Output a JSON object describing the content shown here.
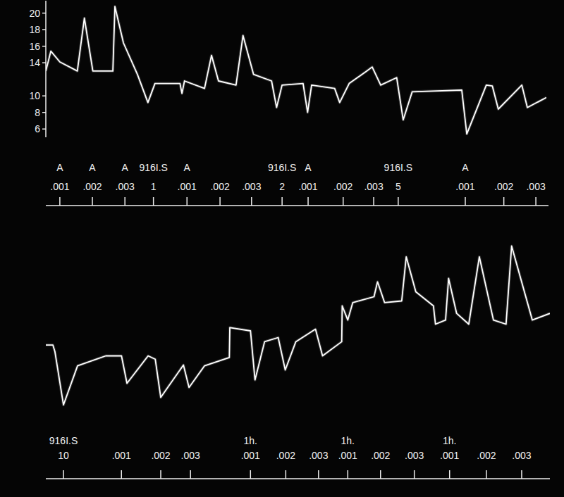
{
  "chart_data": [
    {
      "type": "line",
      "color": "#ffffff",
      "tick_labels": "y",
      "xlim": [
        0,
        100
      ],
      "ylim": [
        5,
        21.5
      ],
      "yticks": [
        6,
        8,
        10,
        14,
        16,
        18,
        20
      ],
      "x": [
        0,
        1.0,
        2.8,
        6.3,
        7.7,
        8.5,
        9.4,
        13.4,
        13.8,
        15.5,
        18.3,
        20.4,
        21.8,
        26.8,
        27.2,
        27.7,
        31.7,
        33.1,
        34.5,
        38.0,
        39.4,
        41.5,
        45.1,
        46.1,
        47.2,
        51.4,
        52.3,
        53.1,
        57.7,
        58.7,
        60.6,
        64.1,
        65.2,
        66.9,
        70.1,
        71.4,
        73.2,
        83.1,
        84.1,
        88.0,
        89.2,
        90.4,
        95.1,
        96.2,
        100
      ],
      "values": [
        13.0,
        15.4,
        14.1,
        13.0,
        19.4,
        16.4,
        13.0,
        13.0,
        20.8,
        16.4,
        12.6,
        9.2,
        11.5,
        11.5,
        10.3,
        11.8,
        10.9,
        14.9,
        11.8,
        11.3,
        17.3,
        12.6,
        11.8,
        8.6,
        11.3,
        11.5,
        8.0,
        11.3,
        10.9,
        9.2,
        11.5,
        13.0,
        13.5,
        11.3,
        12.2,
        7.1,
        10.5,
        10.7,
        5.4,
        11.3,
        11.2,
        8.4,
        11.3,
        8.6,
        9.8
      ],
      "events": [
        {
          "x": 2.8,
          "label": "A",
          "dose": ".001"
        },
        {
          "x": 9.3,
          "label": "A",
          "dose": ".002"
        },
        {
          "x": 15.8,
          "label": "A",
          "dose": ".003"
        },
        {
          "x": 21.5,
          "label": "916I.S",
          "dose": "1"
        },
        {
          "x": 28.2,
          "label": "A",
          "dose": ".001"
        },
        {
          "x": 34.8,
          "dose": ".002"
        },
        {
          "x": 41.1,
          "dose": ".003"
        },
        {
          "x": 47.2,
          "label": "916I.S",
          "dose": "2"
        },
        {
          "x": 52.4,
          "label": "A",
          "dose": ".001"
        },
        {
          "x": 59.4,
          "dose": ".002"
        },
        {
          "x": 65.5,
          "dose": ".003"
        },
        {
          "x": 70.4,
          "label": "916I.S",
          "dose": "5"
        },
        {
          "x": 83.8,
          "label": "A",
          "dose": ".001"
        },
        {
          "x": 91.5,
          "dose": ".002"
        },
        {
          "x": 97.9,
          "dose": ".003"
        }
      ]
    },
    {
      "type": "line",
      "color": "#ffffff",
      "tick_labels": false,
      "xlim": [
        0,
        100
      ],
      "ylim": [
        0,
        22
      ],
      "x": [
        0,
        1.4,
        1.8,
        3.5,
        6.3,
        11.9,
        15.0,
        16.1,
        20.3,
        21.7,
        22.8,
        27.3,
        28.4,
        31.5,
        36.4,
        36.5,
        40.6,
        41.5,
        43.4,
        46.1,
        47.5,
        49.6,
        53.5,
        54.9,
        58.7,
        58.8,
        59.9,
        60.9,
        65.1,
        65.8,
        67.2,
        70.6,
        71.5,
        73.4,
        76.9,
        77.3,
        79.3,
        79.9,
        81.5,
        83.9,
        86.0,
        88.8,
        91.3,
        92.4,
        96.5,
        100
      ],
      "values": [
        9.3,
        9.3,
        8.5,
        2.1,
        6.8,
        8.0,
        8.0,
        4.7,
        8.0,
        7.6,
        3.0,
        6.9,
        4.2,
        6.8,
        7.8,
        11.4,
        11.0,
        5.1,
        9.7,
        10.2,
        6.3,
        9.7,
        11.2,
        8.0,
        9.7,
        14.0,
        12.3,
        14.4,
        15.1,
        16.9,
        14.4,
        14.6,
        19.9,
        15.7,
        14.0,
        11.8,
        12.3,
        17.3,
        13.1,
        11.8,
        19.9,
        12.3,
        11.8,
        21.2,
        12.3,
        13.1
      ],
      "events": [
        {
          "x": 3.5,
          "label": "916I.S",
          "dose": "10"
        },
        {
          "x": 15.0,
          "dose": ".001"
        },
        {
          "x": 22.8,
          "dose": ".002"
        },
        {
          "x": 28.7,
          "dose": ".003"
        },
        {
          "x": 40.6,
          "label": "1h.",
          "dose": ".001"
        },
        {
          "x": 47.6,
          "dose": ".002"
        },
        {
          "x": 54.1,
          "dose": ".003"
        },
        {
          "x": 59.9,
          "label": "1h.",
          "dose": ".001"
        },
        {
          "x": 66.4,
          "dose": ".002"
        },
        {
          "x": 73.1,
          "dose": ".003"
        },
        {
          "x": 80.1,
          "label": "1h.",
          "dose": ".001"
        },
        {
          "x": 87.4,
          "dose": ".002"
        },
        {
          "x": 94.4,
          "dose": ".003"
        }
      ]
    }
  ]
}
